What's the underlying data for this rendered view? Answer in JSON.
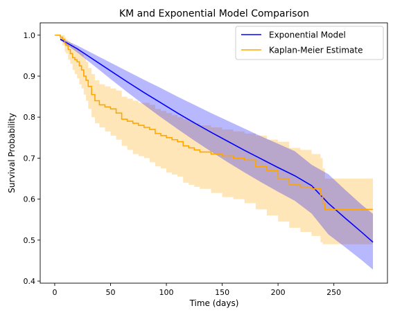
{
  "chart_data": {
    "type": "line",
    "title": "KM and Exponential Model Comparison",
    "xlabel": "Time (days)",
    "ylabel": "Survival Probability",
    "xlim": [
      -13,
      298
    ],
    "ylim": [
      0.395,
      1.03
    ],
    "x_ticks": [
      0,
      50,
      100,
      150,
      200,
      250
    ],
    "y_ticks": [
      0.4,
      0.5,
      0.6,
      0.7,
      0.8,
      0.9,
      1.0
    ],
    "x_tick_labels": [
      "0",
      "50",
      "100",
      "150",
      "200",
      "250"
    ],
    "y_tick_labels": [
      "0.4",
      "0.5",
      "0.6",
      "0.7",
      "0.8",
      "0.9",
      "1.0"
    ],
    "grid": false,
    "legend_position": "top-right",
    "legend": [
      "Exponential Model",
      "Kaplan-Meier Estimate"
    ],
    "colors": {
      "exponential": "#0000ff",
      "exponential_band": "#0000ff",
      "km": "#ffa500",
      "km_band": "#ffa500"
    },
    "series": [
      {
        "name": "Exponential Model",
        "kind": "curve",
        "x": [
          5,
          20,
          35,
          50,
          65,
          80,
          95,
          110,
          125,
          140,
          155,
          170,
          185,
          200,
          215,
          230,
          245,
          260,
          275,
          285
        ],
        "y": [
          0.99,
          0.967,
          0.94,
          0.913,
          0.886,
          0.86,
          0.835,
          0.81,
          0.786,
          0.763,
          0.741,
          0.719,
          0.698,
          0.677,
          0.657,
          0.633,
          0.59,
          0.554,
          0.519,
          0.495
        ],
        "lower": [
          0.988,
          0.958,
          0.926,
          0.893,
          0.861,
          0.83,
          0.8,
          0.771,
          0.743,
          0.716,
          0.69,
          0.665,
          0.641,
          0.618,
          0.596,
          0.565,
          0.514,
          0.483,
          0.451,
          0.428
        ],
        "upper": [
          0.993,
          0.975,
          0.954,
          0.933,
          0.912,
          0.891,
          0.871,
          0.85,
          0.83,
          0.81,
          0.791,
          0.772,
          0.753,
          0.735,
          0.717,
          0.684,
          0.661,
          0.623,
          0.586,
          0.564
        ]
      },
      {
        "name": "Kaplan-Meier Estimate",
        "kind": "step",
        "x": [
          0,
          5,
          7,
          9,
          10,
          12,
          14,
          16,
          18,
          20,
          22,
          24,
          26,
          28,
          30,
          33,
          36,
          40,
          45,
          50,
          55,
          60,
          65,
          70,
          75,
          80,
          85,
          90,
          95,
          100,
          105,
          110,
          115,
          120,
          125,
          130,
          140,
          150,
          160,
          170,
          180,
          190,
          200,
          210,
          220,
          230,
          238,
          240,
          242,
          285
        ],
        "y": [
          1.0,
          0.995,
          0.99,
          0.98,
          0.975,
          0.965,
          0.955,
          0.945,
          0.94,
          0.935,
          0.925,
          0.915,
          0.9,
          0.89,
          0.875,
          0.855,
          0.84,
          0.83,
          0.825,
          0.82,
          0.81,
          0.795,
          0.79,
          0.785,
          0.78,
          0.775,
          0.77,
          0.76,
          0.755,
          0.75,
          0.745,
          0.74,
          0.73,
          0.725,
          0.72,
          0.715,
          0.71,
          0.705,
          0.7,
          0.695,
          0.68,
          0.67,
          0.65,
          0.635,
          0.63,
          0.625,
          0.61,
          0.59,
          0.575,
          0.575
        ],
        "lower": [
          1.0,
          0.985,
          0.975,
          0.96,
          0.955,
          0.94,
          0.93,
          0.915,
          0.905,
          0.895,
          0.88,
          0.87,
          0.855,
          0.84,
          0.82,
          0.8,
          0.785,
          0.775,
          0.765,
          0.755,
          0.745,
          0.73,
          0.72,
          0.71,
          0.705,
          0.7,
          0.69,
          0.68,
          0.675,
          0.665,
          0.66,
          0.655,
          0.64,
          0.635,
          0.63,
          0.625,
          0.615,
          0.605,
          0.6,
          0.59,
          0.575,
          0.56,
          0.545,
          0.53,
          0.52,
          0.51,
          0.495,
          0.49,
          0.49,
          0.49
        ],
        "upper": [
          1.0,
          1.0,
          1.0,
          0.995,
          0.99,
          0.985,
          0.98,
          0.975,
          0.97,
          0.965,
          0.96,
          0.955,
          0.945,
          0.935,
          0.92,
          0.905,
          0.89,
          0.88,
          0.875,
          0.87,
          0.865,
          0.85,
          0.845,
          0.84,
          0.835,
          0.835,
          0.83,
          0.82,
          0.815,
          0.81,
          0.805,
          0.8,
          0.795,
          0.79,
          0.785,
          0.78,
          0.775,
          0.77,
          0.765,
          0.76,
          0.755,
          0.745,
          0.74,
          0.725,
          0.72,
          0.71,
          0.7,
          0.675,
          0.65,
          0.65
        ]
      }
    ]
  }
}
